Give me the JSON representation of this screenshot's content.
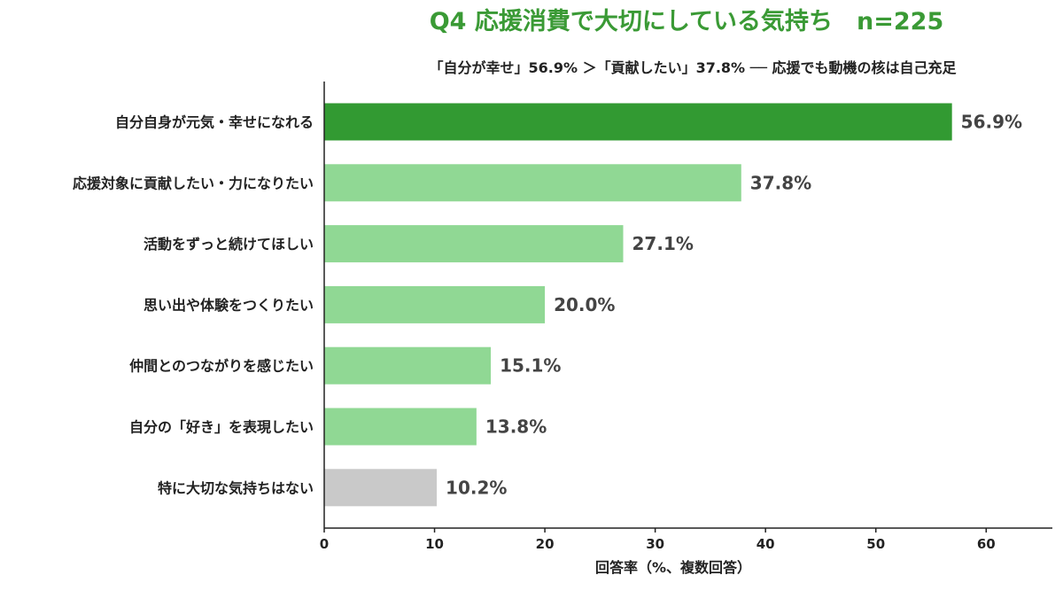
{
  "chart_data": {
    "type": "bar",
    "orientation": "horizontal",
    "title": "Q4 応援消費で大切にしている気持ち　n=225",
    "subtitle": "「自分が幸せ」56.9% ＞「貢献したい」37.8% ── 応援でも動機の核は自己充足",
    "xlabel": "回答率（%、複数回答）",
    "ylabel": "",
    "xlim": [
      0,
      66
    ],
    "xticks": [
      "0",
      "10",
      "20",
      "30",
      "40",
      "50",
      "60"
    ],
    "categories": [
      "自分自身が元気・幸せになれる",
      "応援対象に貢献したい・力になりたい",
      "活動をずっと続けてほしい",
      "思い出や体験をつくりたい",
      "仲間とのつながりを感じたい",
      "自分の「好き」を表現したい",
      "特に大切な気持ちはない"
    ],
    "values": [
      56.9,
      37.8,
      27.1,
      20.0,
      15.1,
      13.8,
      10.2
    ],
    "value_labels": [
      "56.9%",
      "37.8%",
      "27.1%",
      "20.0%",
      "15.1%",
      "13.8%",
      "10.2%"
    ],
    "grid": false,
    "legend": "none"
  },
  "colors": {
    "title": "#3a9a35",
    "text": "#222222",
    "value_text": "#444444",
    "highlight_bar": "#329a32",
    "bar": "#90d894",
    "neutral_bar": "#c9c9c9",
    "axis": "#222222"
  },
  "bar_color_keys": [
    "highlight_bar",
    "bar",
    "bar",
    "bar",
    "bar",
    "bar",
    "neutral_bar"
  ]
}
